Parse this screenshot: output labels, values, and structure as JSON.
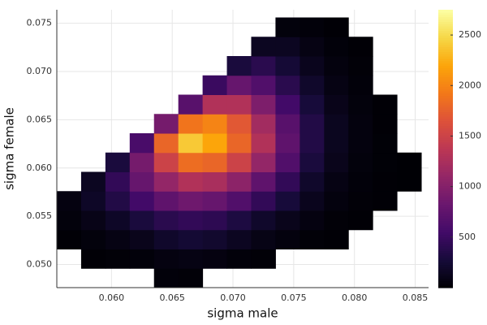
{
  "chart_data": {
    "type": "heatmap",
    "colormap": "inferno",
    "x_label": "sigma male",
    "y_label": "sigma female",
    "xlim": [
      0.0555,
      0.0861
    ],
    "ylim": [
      0.0476,
      0.0764
    ],
    "zlim": [
      0,
      2750
    ],
    "grid": true,
    "xticks": [
      {
        "value": 0.06,
        "label": "0.060"
      },
      0.065,
      {
        "value": 0.07,
        "label": "0.070"
      },
      0.075,
      {
        "value": 0.08,
        "label": "0.080"
      },
      0.085
    ],
    "yticks": [
      {
        "value": 0.05,
        "label": "0.050"
      },
      0.055,
      {
        "value": 0.06,
        "label": "0.060"
      },
      0.065,
      {
        "value": 0.07,
        "label": "0.070"
      },
      0.075
    ],
    "zticks": [
      500,
      1000,
      1500,
      2000,
      2500
    ],
    "xbins": [
      0.0555,
      0.0575,
      0.0595,
      0.0615,
      0.0635,
      0.0655,
      0.0675,
      0.0695,
      0.0715,
      0.0735,
      0.0755,
      0.0775,
      0.0795,
      0.0815,
      0.0835,
      0.0855
    ],
    "ybins": [
      0.0476,
      0.0496,
      0.0516,
      0.0536,
      0.0556,
      0.0576,
      0.0596,
      0.0616,
      0.0636,
      0.0656,
      0.0676,
      0.0696,
      0.0716,
      0.0736,
      0.0756
    ],
    "z": [
      [
        null,
        null,
        null,
        null,
        30,
        20,
        null,
        null,
        null,
        null,
        null,
        null,
        null,
        null,
        null
      ],
      [
        null,
        10,
        20,
        30,
        60,
        80,
        60,
        30,
        20,
        null,
        null,
        null,
        null,
        null,
        null
      ],
      [
        10,
        40,
        80,
        120,
        200,
        250,
        220,
        150,
        90,
        50,
        20,
        10,
        null,
        null,
        null
      ],
      [
        40,
        100,
        180,
        300,
        400,
        450,
        420,
        320,
        200,
        120,
        60,
        20,
        10,
        null,
        null
      ],
      [
        60,
        180,
        350,
        550,
        750,
        850,
        800,
        650,
        450,
        280,
        130,
        50,
        20,
        10,
        null
      ],
      [
        null,
        150,
        450,
        800,
        1100,
        1300,
        1250,
        1050,
        750,
        450,
        200,
        80,
        30,
        10,
        5
      ],
      [
        null,
        null,
        300,
        900,
        1500,
        1850,
        1800,
        1500,
        1100,
        650,
        300,
        120,
        40,
        15,
        5
      ],
      [
        null,
        null,
        null,
        600,
        1800,
        2400,
        2200,
        1800,
        1300,
        750,
        350,
        140,
        50,
        15,
        null
      ],
      [
        null,
        null,
        null,
        null,
        900,
        1900,
        2000,
        1700,
        1200,
        700,
        350,
        140,
        50,
        10,
        null
      ],
      [
        null,
        null,
        null,
        null,
        null,
        700,
        1300,
        1300,
        950,
        550,
        280,
        110,
        40,
        10,
        null
      ],
      [
        null,
        null,
        null,
        null,
        null,
        null,
        500,
        800,
        650,
        400,
        200,
        80,
        30,
        null,
        null
      ],
      [
        null,
        null,
        null,
        null,
        null,
        null,
        null,
        300,
        400,
        260,
        130,
        50,
        20,
        null,
        null
      ],
      [
        null,
        null,
        null,
        null,
        null,
        null,
        null,
        null,
        150,
        150,
        80,
        30,
        10,
        null,
        null
      ],
      [
        null,
        null,
        null,
        null,
        null,
        null,
        null,
        null,
        null,
        40,
        30,
        10,
        null,
        null,
        null
      ]
    ]
  }
}
